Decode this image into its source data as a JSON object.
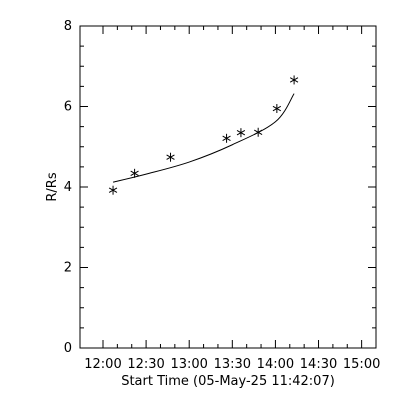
{
  "chart_data": {
    "type": "scatter",
    "xlabel": "Start Time (05-May-25 11:42:07)",
    "ylabel": "R/Rs",
    "x_ticks": [
      "12:00",
      "12:30",
      "13:00",
      "13:30",
      "14:00",
      "14:30",
      "15:00"
    ],
    "x_tick_minutes": [
      0,
      30,
      60,
      90,
      120,
      150,
      180
    ],
    "xlim_minutes": [
      -16,
      190
    ],
    "y_ticks": [
      "0",
      "2",
      "4",
      "6",
      "8"
    ],
    "ylim": [
      0,
      8
    ],
    "series": [
      {
        "marker": "asterisk",
        "points": [
          {
            "x": "12:07",
            "y": 3.92
          },
          {
            "x": "12:22",
            "y": 4.34
          },
          {
            "x": "12:47",
            "y": 4.74
          },
          {
            "x": "13:26",
            "y": 5.21
          },
          {
            "x": "13:36",
            "y": 5.35
          },
          {
            "x": "13:48",
            "y": 5.36
          },
          {
            "x": "14:01",
            "y": 5.95
          },
          {
            "x": "14:13",
            "y": 6.66
          }
        ]
      }
    ],
    "fit_line": {
      "points": [
        {
          "x": "12:07",
          "y": 4.12
        },
        {
          "x": "12:30",
          "y": 4.32
        },
        {
          "x": "13:00",
          "y": 4.62
        },
        {
          "x": "13:30",
          "y": 5.05
        },
        {
          "x": "14:00",
          "y": 5.62
        },
        {
          "x": "14:13",
          "y": 6.32
        }
      ]
    },
    "grid": false
  }
}
